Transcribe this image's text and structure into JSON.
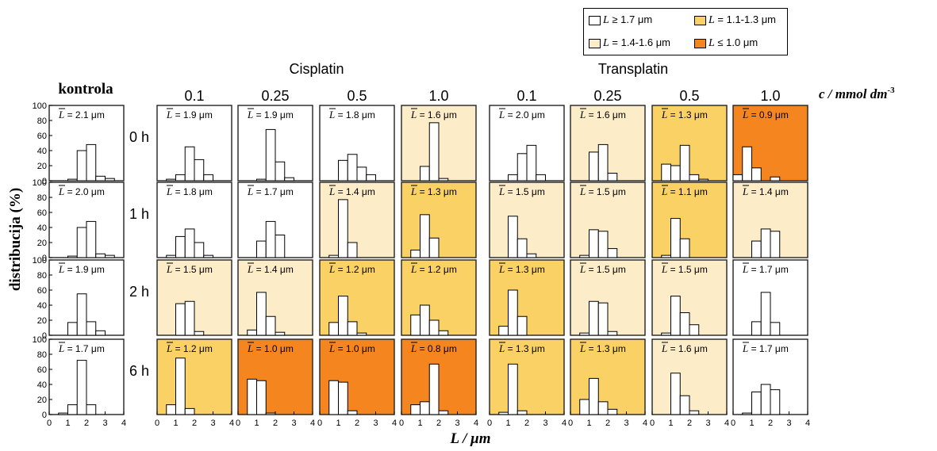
{
  "chart_data": {
    "type": "bar",
    "title_row": {
      "group_left": "Cisplatin",
      "group_right": "Transplatin",
      "control_label": "kontrola",
      "concentrations": [
        "0.1",
        "0.25",
        "0.5",
        "1.0"
      ],
      "conc_unit_label": "c / mmol dm",
      "conc_unit_sup": "-3"
    },
    "ylabel": "distribucija (%)",
    "xlabel": "L / μm",
    "x_ticks": [
      "0",
      "1",
      "2",
      "3",
      "4"
    ],
    "y_ticks": [
      "0",
      "20",
      "40",
      "60",
      "80",
      "100"
    ],
    "xlim": [
      0,
      4
    ],
    "ylim": [
      0,
      100
    ],
    "bins_center": [
      0.25,
      0.75,
      1.25,
      1.75,
      2.25,
      2.75,
      3.25,
      3.75
    ],
    "times": [
      "0 h",
      "1 h",
      "2 h",
      "6 h"
    ],
    "mean_prefix": "L",
    "legend": [
      {
        "label_var": "L",
        "label_text": " ≥ 1.7 μm",
        "color": "#ffffff"
      },
      {
        "label_var": "L",
        "label_text": " = 1.1-1.3 μm",
        "color": "#f9d165"
      },
      {
        "label_var": "L",
        "label_text": " = 1.4-1.6 μm",
        "color": "#fcecc8"
      },
      {
        "label_var": "L",
        "label_text": " ≤ 1.0 μm",
        "color": "#f5861f"
      }
    ],
    "category_colors": {
      "white": "#ffffff",
      "light": "#fcecc8",
      "mid": "#f9d165",
      "dark": "#f5861f"
    },
    "control": [
      {
        "mean": "= 2.1 μm",
        "values": [
          0,
          0,
          2,
          40,
          48,
          6,
          3,
          0
        ]
      },
      {
        "mean": "= 2.0 μm",
        "values": [
          0,
          0,
          2,
          40,
          48,
          5,
          3,
          0
        ]
      },
      {
        "mean": "= 1.9 μm",
        "values": [
          0,
          0,
          17,
          55,
          18,
          6,
          0,
          0
        ]
      },
      {
        "mean": "= 1.7 μm",
        "values": [
          0,
          2,
          13,
          72,
          13,
          0,
          0,
          0
        ]
      }
    ],
    "panels": [
      [
        {
          "mean": "= 1.9 μm",
          "cat": "white",
          "values": [
            0,
            2,
            8,
            45,
            28,
            8,
            0,
            0
          ]
        },
        {
          "mean": "= 1.9 μm",
          "cat": "white",
          "values": [
            0,
            0,
            2,
            68,
            25,
            4,
            0,
            0
          ]
        },
        {
          "mean": "= 1.8 μm",
          "cat": "white",
          "values": [
            0,
            0,
            27,
            35,
            18,
            8,
            0,
            0
          ]
        },
        {
          "mean": "= 1.6 μm",
          "cat": "light",
          "values": [
            0,
            0,
            19,
            77,
            3,
            0,
            0,
            0
          ]
        },
        {
          "mean": "= 2.0 μm",
          "cat": "white",
          "values": [
            0,
            0,
            8,
            36,
            47,
            8,
            0,
            0
          ]
        },
        {
          "mean": "= 1.6 μm",
          "cat": "light",
          "values": [
            0,
            0,
            38,
            48,
            10,
            0,
            0,
            0
          ]
        },
        {
          "mean": "= 1.3 μm",
          "cat": "mid",
          "values": [
            0,
            22,
            20,
            47,
            8,
            2,
            0,
            0
          ]
        },
        {
          "mean": "= 0.9 μm",
          "cat": "dark",
          "values": [
            8,
            45,
            17,
            0,
            5,
            0,
            0,
            0
          ]
        }
      ],
      [
        {
          "mean": "= 1.8 μm",
          "cat": "white",
          "values": [
            0,
            3,
            28,
            38,
            20,
            3,
            0,
            0
          ]
        },
        {
          "mean": "= 1.7 μm",
          "cat": "white",
          "values": [
            0,
            0,
            22,
            48,
            30,
            0,
            0,
            0
          ]
        },
        {
          "mean": "= 1.4 μm",
          "cat": "light",
          "values": [
            0,
            3,
            77,
            20,
            0,
            0,
            0,
            0
          ]
        },
        {
          "mean": "= 1.3 μm",
          "cat": "mid",
          "values": [
            0,
            10,
            57,
            26,
            0,
            0,
            0,
            0
          ]
        },
        {
          "mean": "= 1.5 μm",
          "cat": "light",
          "values": [
            0,
            0,
            55,
            25,
            5,
            0,
            0,
            0
          ]
        },
        {
          "mean": "= 1.5 μm",
          "cat": "light",
          "values": [
            0,
            3,
            37,
            35,
            12,
            0,
            0,
            0
          ]
        },
        {
          "mean": "= 1.1 μm",
          "cat": "mid",
          "values": [
            0,
            3,
            52,
            25,
            0,
            0,
            0,
            0
          ]
        },
        {
          "mean": "= 1.4 μm",
          "cat": "light",
          "values": [
            0,
            0,
            22,
            38,
            35,
            0,
            0,
            0
          ]
        }
      ],
      [
        {
          "mean": "= 1.5 μm",
          "cat": "light",
          "values": [
            0,
            0,
            42,
            45,
            5,
            0,
            0,
            0
          ]
        },
        {
          "mean": "= 1.4 μm",
          "cat": "light",
          "values": [
            0,
            7,
            57,
            25,
            4,
            0,
            0,
            0
          ]
        },
        {
          "mean": "= 1.2 μm",
          "cat": "mid",
          "values": [
            0,
            17,
            52,
            18,
            3,
            0,
            0,
            0
          ]
        },
        {
          "mean": "= 1.2 μm",
          "cat": "mid",
          "values": [
            0,
            27,
            40,
            20,
            6,
            0,
            0,
            0
          ]
        },
        {
          "mean": "= 1.3 μm",
          "cat": "mid",
          "values": [
            0,
            12,
            60,
            25,
            0,
            0,
            0,
            0
          ]
        },
        {
          "mean": "= 1.5 μm",
          "cat": "light",
          "values": [
            0,
            3,
            45,
            43,
            5,
            0,
            0,
            0
          ]
        },
        {
          "mean": "= 1.5 μm",
          "cat": "light",
          "values": [
            0,
            3,
            52,
            30,
            14,
            0,
            0,
            0
          ]
        },
        {
          "mean": "= 1.7 μm",
          "cat": "white",
          "values": [
            0,
            0,
            18,
            57,
            17,
            0,
            0,
            0
          ]
        }
      ],
      [
        {
          "mean": "= 1.2 μm",
          "cat": "mid",
          "values": [
            0,
            13,
            75,
            8,
            0,
            0,
            0,
            0
          ]
        },
        {
          "mean": "= 1.0 μm",
          "cat": "dark",
          "values": [
            0,
            47,
            45,
            2,
            0,
            0,
            0,
            0
          ]
        },
        {
          "mean": "= 1.0 μm",
          "cat": "dark",
          "values": [
            0,
            45,
            43,
            5,
            0,
            0,
            0,
            0
          ]
        },
        {
          "mean": "= 0.8 μm",
          "cat": "dark",
          "values": [
            0,
            13,
            17,
            67,
            5,
            0,
            0,
            0
          ]
        },
        {
          "mean": "= 1.3 μm",
          "cat": "mid",
          "values": [
            0,
            3,
            67,
            5,
            0,
            0,
            0,
            0
          ]
        },
        {
          "mean": "= 1.3 μm",
          "cat": "mid",
          "values": [
            0,
            20,
            48,
            17,
            7,
            0,
            0,
            0
          ]
        },
        {
          "mean": "= 1.6 μm",
          "cat": "light",
          "values": [
            0,
            0,
            55,
            25,
            5,
            0,
            0,
            0
          ]
        },
        {
          "mean": "= 1.7 μm",
          "cat": "white",
          "values": [
            0,
            2,
            30,
            40,
            33,
            0,
            0,
            0
          ]
        }
      ]
    ]
  }
}
